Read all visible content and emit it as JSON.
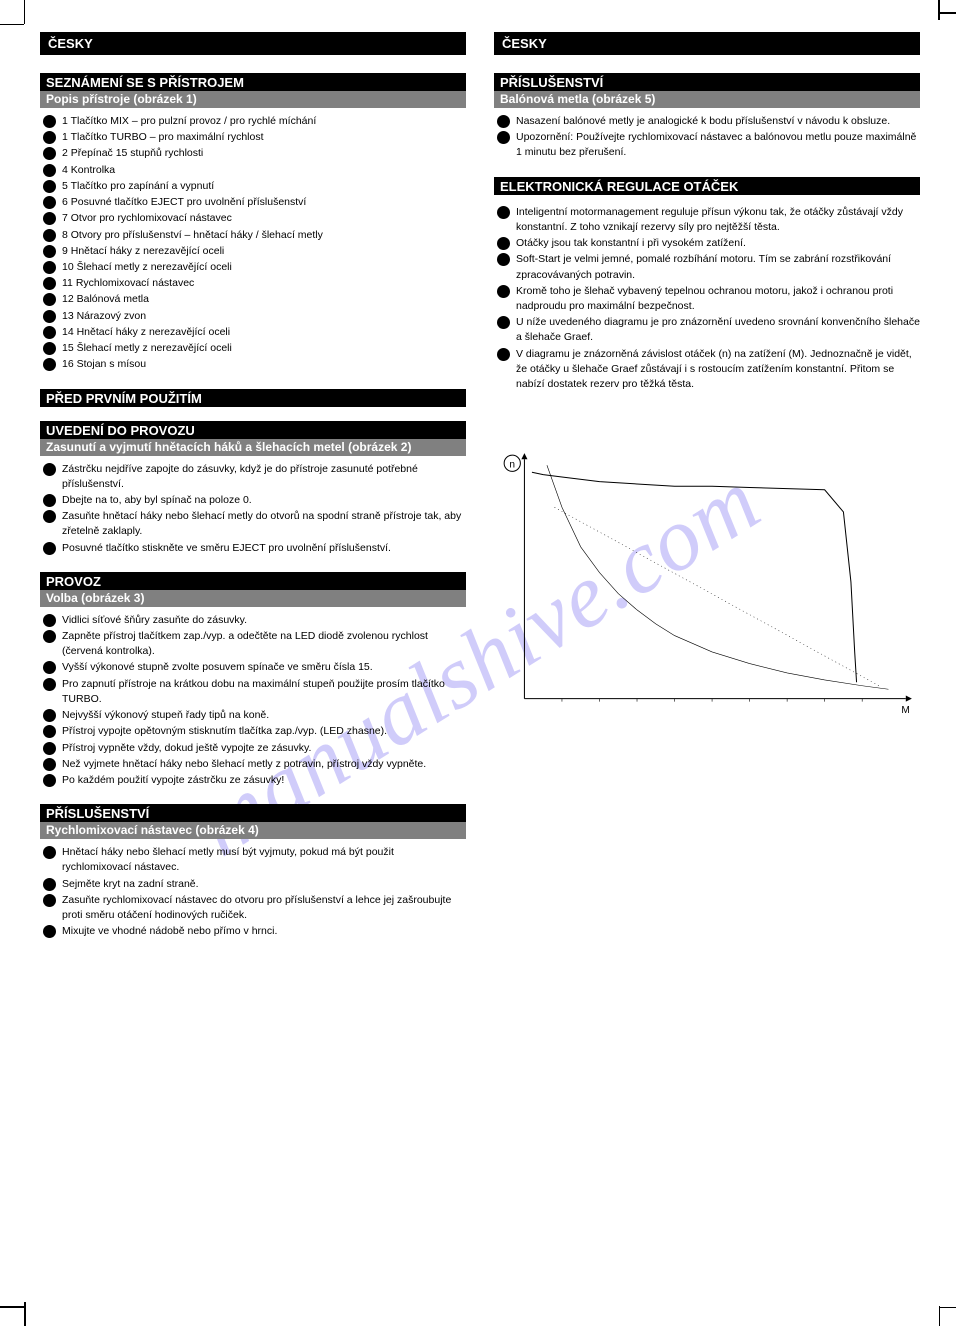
{
  "watermark": "manualshive.com",
  "left": {
    "lang": "ČESKY",
    "s1": {
      "black": "SEZNÁMENÍ SE S PŘÍSTROJEM",
      "grey": "Popis přístroje  (obrázek 1)",
      "items": [
        "1  Tlačítko MIX – pro pulzní provoz / pro rychlé míchání",
        "1  Tlačítko TURBO – pro maximální rychlost",
        "2  Přepínač 15 stupňů rychlosti",
        "4  Kontrolka",
        "5  Tlačítko pro zapínání a vypnutí",
        "6  Posuvné tlačítko EJECT pro uvolnění příslušenství",
        "7  Otvor pro rychlomixovací nástavec",
        "8  Otvory pro příslušenství – hnětací háky / šlehací metly",
        "9  Hnětací háky z nerezavějící oceli",
        "10  Šlehací metly z nerezavějící oceli",
        "11  Rychlomixovací nástavec",
        "12  Balónová metla",
        "13  Nárazový zvon",
        "14  Hnětací háky z nerezavějící oceli",
        "15  Šlehací metly z nerezavějící oceli",
        "16  Stojan s mísou"
      ]
    },
    "s2": {
      "black": "PŘED PRVNÍM POUŽITÍM"
    },
    "s3": {
      "black": "UVEDENÍ DO PROVOZU",
      "grey": "Zasunutí a vyjmutí hnětacích háků a šlehacích metel  (obrázek 2)",
      "items": [
        "Zástrčku nejdříve zapojte do zásuvky, když je do přístroje zasunuté potřebné příslušenství.",
        "Dbejte na to, aby byl spínač na poloze 0.",
        "Zasuňte hnětací háky nebo šlehací metly do otvorů na spodní straně přístroje tak, aby zřetelně zaklaply.",
        "Posuvné tlačítko stiskněte ve směru EJECT pro uvolnění příslušenství."
      ]
    },
    "s4": {
      "black": "PROVOZ",
      "grey": "Volba  (obrázek 3)",
      "items": [
        "Vidlici síťové šňůry zasuňte do zásuvky.",
        "Zapněte přístroj tlačítkem zap./vyp. a odečtěte na LED diodě zvolenou rychlost (červená kontrolka).",
        "Vyšší výkonové stupně zvolte posuvem spínače ve směru čísla 15.",
        "Pro zapnutí přístroje na krátkou dobu na maximální stupeň použijte prosím tlačítko TURBO.",
        "Nejvyšší výkonový stupeň řady tipů na koně.",
        "Přístroj vypojte opětovným stisknutím tlačítka zap./vyp. (LED zhasne).",
        "Přístroj vypněte vždy, dokud ještě vypojte ze zásuvky.",
        "Než vyjmete hnětací háky nebo šlehací metly z potravin, přístroj vždy vypněte.",
        "Po každém použití vypojte zástrčku ze zásuvky!"
      ]
    },
    "s5": {
      "black": "PŘÍSLUŠENSTVÍ",
      "grey": "Rychlomixovací nástavec  (obrázek 4)",
      "items": [
        "Hnětací háky nebo šlehací metly musí být vyjmuty, pokud má být použit rychlomixovací nástavec.",
        "Sejměte kryt na zadní straně.",
        "Zasuňte rychlomixovací nástavec do otvoru pro příslušenství a lehce jej zašroubujte proti směru otáčení hodinových ručiček.",
        "Mixujte ve vhodné nádobě nebo přímo v hrnci."
      ]
    }
  },
  "right": {
    "lang": "ČESKY",
    "s1": {
      "black": "PŘÍSLUŠENSTVÍ",
      "grey": "Balónová metla  (obrázek 5)",
      "items": [
        "Nasazení balónové metly je analogické k bodu příslušenství v návodu k obsluze.",
        "Upozornění: Používejte rychlomixovací nástavec a balónovou metlu pouze maximálně 1 minutu bez přerušení."
      ]
    },
    "s2": {
      "black": "ELEKTRONICKÁ REGULACE OTÁČEK",
      "items": [
        "Inteligentní motormanagement reguluje přísun výkonu tak, že otáčky zůstávají vždy konstantní. Z toho vznikají rezervy síly pro nejtěžší těsta.",
        "Otáčky jsou tak konstantní i při vysokém zatížení.",
        "Soft-Start je velmi jemné, pomalé rozbíhání motoru. Tím se zabrání rozstřikování zpracovávaných potravin.",
        "Kromě toho je šlehač vybavený tepelnou ochranou motoru, jakož i ochranou proti nadproudu pro maximální bezpečnost.",
        "U níže uvedeného diagramu je pro znázornění uvedeno srovnání konvenčního šlehače a šlehače Graef.",
        "V diagramu je znázorněná závislost otáček (n) na zatížení (M). Jednoznačně je vidět, že otáčky u šlehače Graef zůstávají i s rostoucím zatížením konstantní. Přitom se nabízí dostatek rezerv pro těžká těsta."
      ]
    },
    "chart": {
      "type": "line",
      "x_axis": "M",
      "y_axis": "n",
      "y_label_icon": "n↓",
      "xlim": [
        0,
        10
      ],
      "ylim": [
        0,
        10
      ],
      "xtick_step": 1,
      "series": [
        {
          "name": "graef",
          "stroke": "#000000",
          "stroke_width": 1.0,
          "dash": "solid",
          "points": [
            [
              0.2,
              9.7
            ],
            [
              0.5,
              9.6
            ],
            [
              1.0,
              9.5
            ],
            [
              2.0,
              9.3
            ],
            [
              3.0,
              9.2
            ],
            [
              4.0,
              9.1
            ],
            [
              5.0,
              9.1
            ],
            [
              6.0,
              9.05
            ],
            [
              7.0,
              9.0
            ],
            [
              8.0,
              8.95
            ],
            [
              8.5,
              8.0
            ],
            [
              8.7,
              5.0
            ],
            [
              8.8,
              2.0
            ],
            [
              8.85,
              0.7
            ]
          ]
        },
        {
          "name": "conventional-curve",
          "stroke": "#000000",
          "stroke_width": 0.6,
          "dash": "solid",
          "points": [
            [
              0.6,
              10.0
            ],
            [
              1.0,
              8.2
            ],
            [
              1.5,
              6.5
            ],
            [
              2.0,
              5.4
            ],
            [
              2.5,
              4.5
            ],
            [
              3.0,
              3.8
            ],
            [
              3.5,
              3.2
            ],
            [
              4.0,
              2.7
            ],
            [
              5.0,
              2.0
            ],
            [
              6.0,
              1.5
            ],
            [
              7.0,
              1.1
            ],
            [
              8.0,
              0.8
            ],
            [
              9.0,
              0.55
            ],
            [
              9.7,
              0.4
            ]
          ]
        },
        {
          "name": "conventional-linear",
          "stroke": "#000000",
          "stroke_width": 0.5,
          "dash": "1,3",
          "points": [
            [
              0.8,
              8.2
            ],
            [
              9.5,
              0.5
            ]
          ]
        }
      ],
      "axis_color": "#000000",
      "tick_color": "#000000",
      "background": "#ffffff"
    }
  }
}
